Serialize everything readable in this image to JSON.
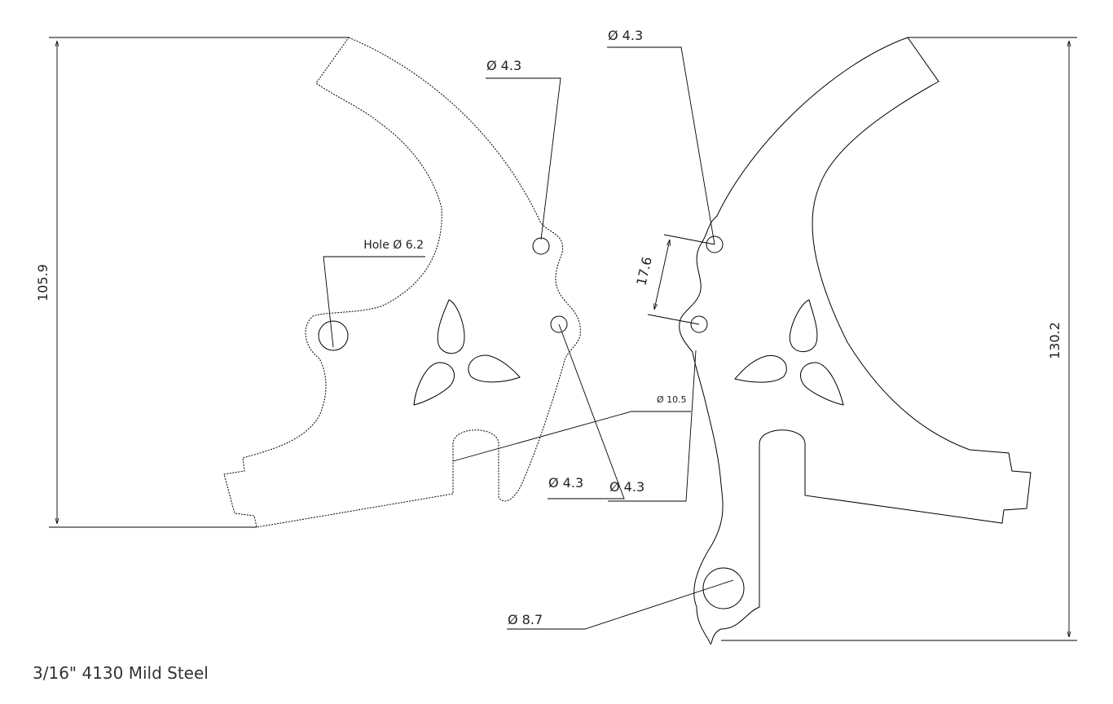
{
  "drawing": {
    "material_note": "3/16\" 4130 Mild Steel",
    "dimensions": {
      "left_height": "105.9",
      "right_height": "130.2",
      "hole_spacing": "17.6"
    },
    "callouts": {
      "left_top_hole": "Ø 4.3",
      "left_big_hole": "Hole Ø 6.2",
      "slot_width": "Ø 10.5",
      "left_lower_hole": "Ø 4.3",
      "right_lower_hole": "Ø 4.3",
      "right_top_hole": "Ø 4.3",
      "right_bottom_hole": "Ø 8.7"
    }
  }
}
